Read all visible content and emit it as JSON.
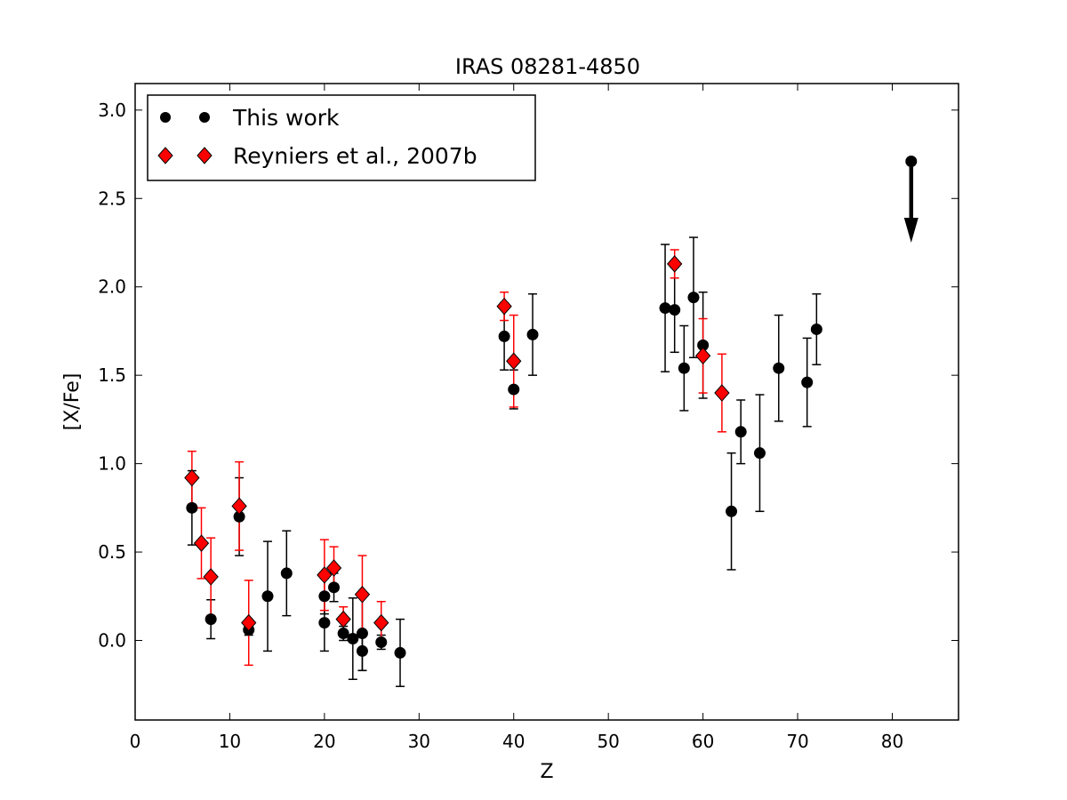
{
  "chart_data": {
    "type": "scatter",
    "title": "IRAS 08281-4850",
    "xlabel": "Z",
    "ylabel": "[X/Fe]",
    "xlim": [
      0,
      87
    ],
    "ylim": [
      -0.45,
      3.15
    ],
    "xticks": [
      0,
      10,
      20,
      30,
      40,
      50,
      60,
      70,
      80
    ],
    "yticks": [
      0.0,
      0.5,
      1.0,
      1.5,
      2.0,
      2.5,
      3.0
    ],
    "legend_position": "top-left",
    "grid": false,
    "series": [
      {
        "name": "This work",
        "marker": "circle",
        "color": "#000000",
        "errcolor": "#000000",
        "points": [
          {
            "x": 6,
            "y": 0.75,
            "err": 0.21
          },
          {
            "x": 8,
            "y": 0.12,
            "err": 0.11
          },
          {
            "x": 11,
            "y": 0.7,
            "err": 0.22
          },
          {
            "x": 12,
            "y": 0.06,
            "err": 0.03
          },
          {
            "x": 14,
            "y": 0.25,
            "err": 0.31
          },
          {
            "x": 16,
            "y": 0.38,
            "err": 0.24
          },
          {
            "x": 20,
            "y": 0.25,
            "err": 0.1
          },
          {
            "x": 20,
            "y": 0.1,
            "err": 0.16
          },
          {
            "x": 21,
            "y": 0.3,
            "err": 0.08
          },
          {
            "x": 22,
            "y": 0.04,
            "err": 0.04
          },
          {
            "x": 23,
            "y": 0.01,
            "err": 0.23
          },
          {
            "x": 24,
            "y": -0.06,
            "err": 0.11
          },
          {
            "x": 24,
            "y": 0.04,
            "err": 0.21
          },
          {
            "x": 26,
            "y": -0.01,
            "err": 0.04
          },
          {
            "x": 28,
            "y": -0.07,
            "err": 0.19
          },
          {
            "x": 39,
            "y": 1.72,
            "err": 0.19
          },
          {
            "x": 40,
            "y": 1.42,
            "err": 0.11
          },
          {
            "x": 42,
            "y": 1.73,
            "err": 0.23
          },
          {
            "x": 56,
            "y": 1.88,
            "err": 0.36
          },
          {
            "x": 57,
            "y": 1.87,
            "err": 0.24
          },
          {
            "x": 58,
            "y": 1.54,
            "err": 0.24
          },
          {
            "x": 59,
            "y": 1.94,
            "err": 0.34
          },
          {
            "x": 60,
            "y": 1.67,
            "err": 0.3
          },
          {
            "x": 63,
            "y": 0.73,
            "err": 0.33
          },
          {
            "x": 64,
            "y": 1.18,
            "err": 0.18
          },
          {
            "x": 66,
            "y": 1.06,
            "err": 0.33
          },
          {
            "x": 68,
            "y": 1.54,
            "err": 0.3
          },
          {
            "x": 71,
            "y": 1.46,
            "err": 0.25
          },
          {
            "x": 72,
            "y": 1.76,
            "err": 0.2
          }
        ],
        "upper_limits": [
          {
            "x": 82,
            "y": 2.71,
            "y_arrow_end": 2.25
          }
        ]
      },
      {
        "name": "Reyniers et al., 2007b",
        "marker": "diamond",
        "color": "#ff0000",
        "errcolor": "#ff0000",
        "points": [
          {
            "x": 6,
            "y": 0.92,
            "err": 0.15
          },
          {
            "x": 7,
            "y": 0.55,
            "err": 0.2
          },
          {
            "x": 8,
            "y": 0.36,
            "err": 0.22
          },
          {
            "x": 11,
            "y": 0.76,
            "err": 0.25
          },
          {
            "x": 12,
            "y": 0.1,
            "err": 0.24
          },
          {
            "x": 20,
            "y": 0.37,
            "err": 0.2
          },
          {
            "x": 21,
            "y": 0.41,
            "err": 0.12
          },
          {
            "x": 22,
            "y": 0.12,
            "err": 0.07
          },
          {
            "x": 24,
            "y": 0.26,
            "err": 0.22
          },
          {
            "x": 26,
            "y": 0.1,
            "err": 0.12
          },
          {
            "x": 39,
            "y": 1.89,
            "err": 0.08
          },
          {
            "x": 40,
            "y": 1.58,
            "err": 0.26
          },
          {
            "x": 57,
            "y": 2.13,
            "err": 0.08
          },
          {
            "x": 60,
            "y": 1.61,
            "err": 0.21
          },
          {
            "x": 62,
            "y": 1.4,
            "err": 0.22
          }
        ]
      }
    ]
  }
}
